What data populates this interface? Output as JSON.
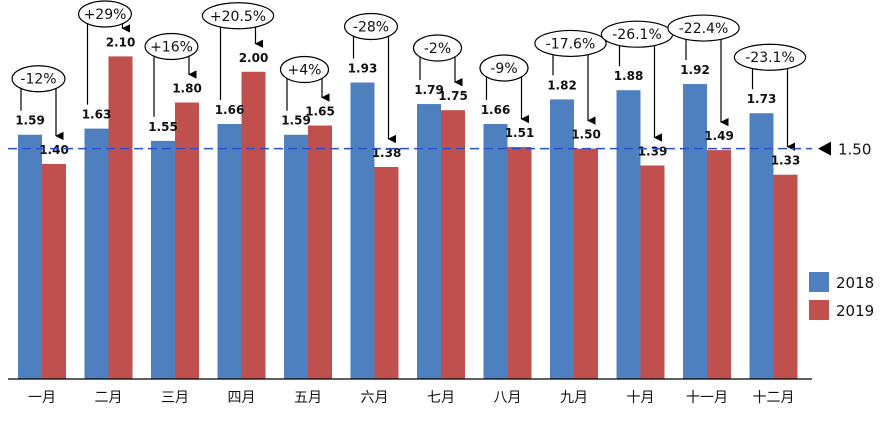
{
  "chart_data": {
    "type": "bar",
    "categories": [
      "一月",
      "二月",
      "三月",
      "四月",
      "五月",
      "六月",
      "七月",
      "八月",
      "九月",
      "十月",
      "十一月",
      "十二月"
    ],
    "series": [
      {
        "name": "2018",
        "color": "#4e80c0",
        "values": [
          1.59,
          1.63,
          1.55,
          1.66,
          1.59,
          1.93,
          1.79,
          1.66,
          1.82,
          1.88,
          1.92,
          1.73
        ],
        "labels": [
          "1.59",
          "1.63",
          "1.55",
          "1.66",
          "1.59",
          "1.93",
          "1.79",
          "1.66",
          "1.82",
          "1.88",
          "1.92",
          "1.73"
        ]
      },
      {
        "name": "2019",
        "color": "#c0504d",
        "values": [
          1.4,
          2.1,
          1.8,
          2.0,
          1.65,
          1.38,
          1.75,
          1.51,
          1.5,
          1.39,
          1.49,
          1.33
        ],
        "labels": [
          "1.40",
          "2.10",
          "1.80",
          "2.00",
          "1.65",
          "1.38",
          "1.75",
          "1.51",
          "1.50",
          "1.39",
          "1.49",
          "1.33"
        ]
      }
    ],
    "changes": [
      "-12%",
      "+29%",
      "+16%",
      "+20.5%",
      "+4%",
      "-28%",
      "-2%",
      "-9%",
      "-17.6%",
      "-26.1%",
      "-22.4%",
      "-23.1%"
    ],
    "reference_line": {
      "value": 1.5,
      "label": "1.50",
      "color": "#2850d0"
    },
    "ylim": [
      0,
      2.35
    ],
    "grid": false,
    "legend_position": "right"
  }
}
